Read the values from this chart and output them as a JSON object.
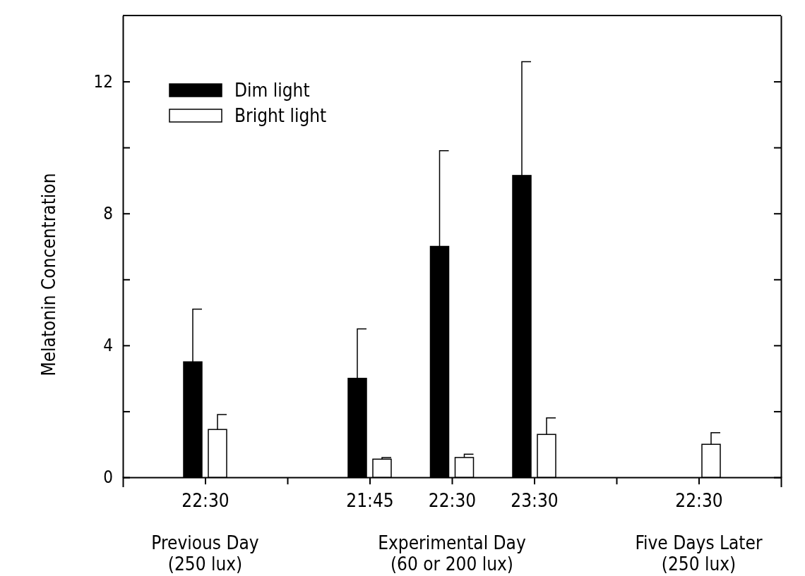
{
  "chart_data": {
    "type": "bar",
    "ylabel": "Melatonin Concentration",
    "categories": [
      "22:30",
      null,
      "21:45",
      "22:30",
      "23:30",
      null,
      "22:30"
    ],
    "series": [
      {
        "name": "Dim light",
        "color": "#000000",
        "values": [
          3.5,
          null,
          3.0,
          7.0,
          9.15,
          null,
          null
        ],
        "errors": [
          [
            3.5,
            5.1
          ],
          null,
          [
            3.0,
            4.5
          ],
          [
            7.0,
            9.9
          ],
          [
            9.15,
            12.6
          ],
          null,
          null
        ]
      },
      {
        "name": "Bright light",
        "color": "#ffffff",
        "values": [
          1.45,
          null,
          0.55,
          0.6,
          1.3,
          null,
          1.0
        ],
        "errors": [
          [
            1.45,
            1.9
          ],
          null,
          [
            0.55,
            0.6
          ],
          [
            0.6,
            0.7
          ],
          [
            1.3,
            1.8
          ],
          null,
          [
            1.0,
            1.35
          ]
        ]
      }
    ],
    "ylim": [
      0,
      14
    ],
    "yticks": [
      0,
      4,
      8,
      12,
      {
        "value": 2,
        "label": null
      },
      {
        "value": 6,
        "label": null
      },
      {
        "value": 10,
        "label": null
      }
    ],
    "legend": "top left",
    "grid": false,
    "annotations": [
      "Previous Day\n(250 lux)",
      "Experimental Day\n(60 or 200 lux)",
      "Five Days Later\n(250 lux)"
    ]
  }
}
